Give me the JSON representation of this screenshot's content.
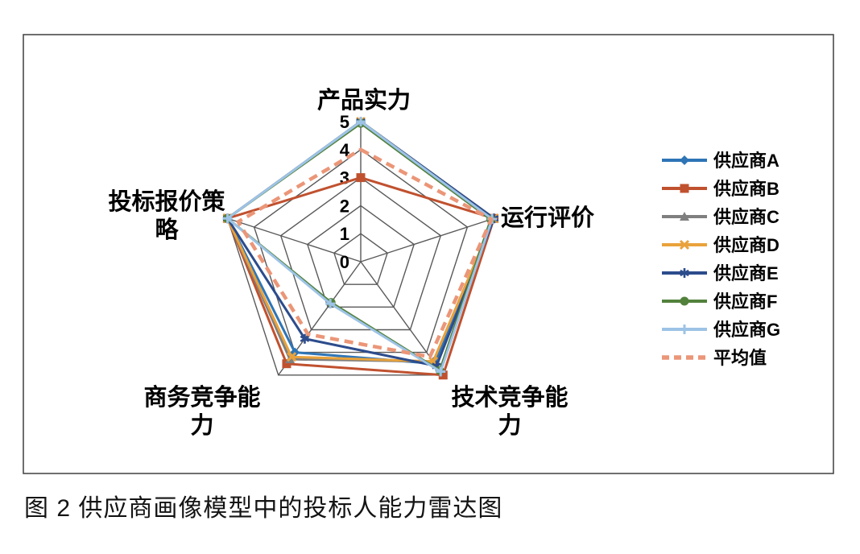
{
  "figure": {
    "caption": "图 2  供应商画像模型中的投标人能力雷达图"
  },
  "chart_data": {
    "type": "radar",
    "title": "",
    "categories": [
      "产品实力",
      "运行评价",
      "技术竞争能力",
      "商务竞争能力",
      "投标报价策略"
    ],
    "category_label_lines": [
      [
        "产品实力"
      ],
      [
        "运行评价"
      ],
      [
        "技术竞争能",
        "力"
      ],
      [
        "商务竞争能",
        "力"
      ],
      [
        "投标报价策",
        "略"
      ]
    ],
    "axis_range": [
      0,
      5
    ],
    "tick_labels": [
      "0",
      "1",
      "2",
      "3",
      "4",
      "5"
    ],
    "grid": true,
    "grid_color": "#595959",
    "border_color": "#3f3f3f",
    "legend_position": "right",
    "series": [
      {
        "name": "供应商A",
        "slug": "supplier-a",
        "color": "#2E75B6",
        "marker": "diamond",
        "dashed": false,
        "values": [
          5,
          5,
          4.5,
          4.0,
          5
        ]
      },
      {
        "name": "供应商B",
        "slug": "supplier-b",
        "color": "#C0512F",
        "marker": "square",
        "dashed": false,
        "values": [
          3,
          5,
          5,
          4.5,
          5
        ]
      },
      {
        "name": "供应商C",
        "slug": "supplier-c",
        "color": "#7F7F7F",
        "marker": "triangle",
        "dashed": false,
        "values": [
          5,
          5,
          4.4,
          4.3,
          5
        ]
      },
      {
        "name": "供应商D",
        "slug": "supplier-d",
        "color": "#E9A23B",
        "marker": "x",
        "dashed": false,
        "values": [
          5,
          5,
          4.4,
          4.2,
          5
        ]
      },
      {
        "name": "供应商E",
        "slug": "supplier-e",
        "color": "#2C4C8C",
        "marker": "asterisk",
        "dashed": false,
        "values": [
          5,
          5,
          4.6,
          3.4,
          5
        ]
      },
      {
        "name": "供应商F",
        "slug": "supplier-f",
        "color": "#52813C",
        "marker": "circle",
        "dashed": false,
        "values": [
          4.94,
          4.88,
          4.8,
          1.8,
          5
        ]
      },
      {
        "name": "供应商G",
        "slug": "supplier-g",
        "color": "#9DC3E6",
        "marker": "plus",
        "dashed": false,
        "values": [
          5,
          4.93,
          4.85,
          1.85,
          5
        ]
      },
      {
        "name": "平均值",
        "slug": "average",
        "color": "#EB9678",
        "marker": "dash",
        "dashed": true,
        "values": [
          4.0,
          4.9,
          4.2,
          3.2,
          4.6
        ]
      }
    ]
  }
}
